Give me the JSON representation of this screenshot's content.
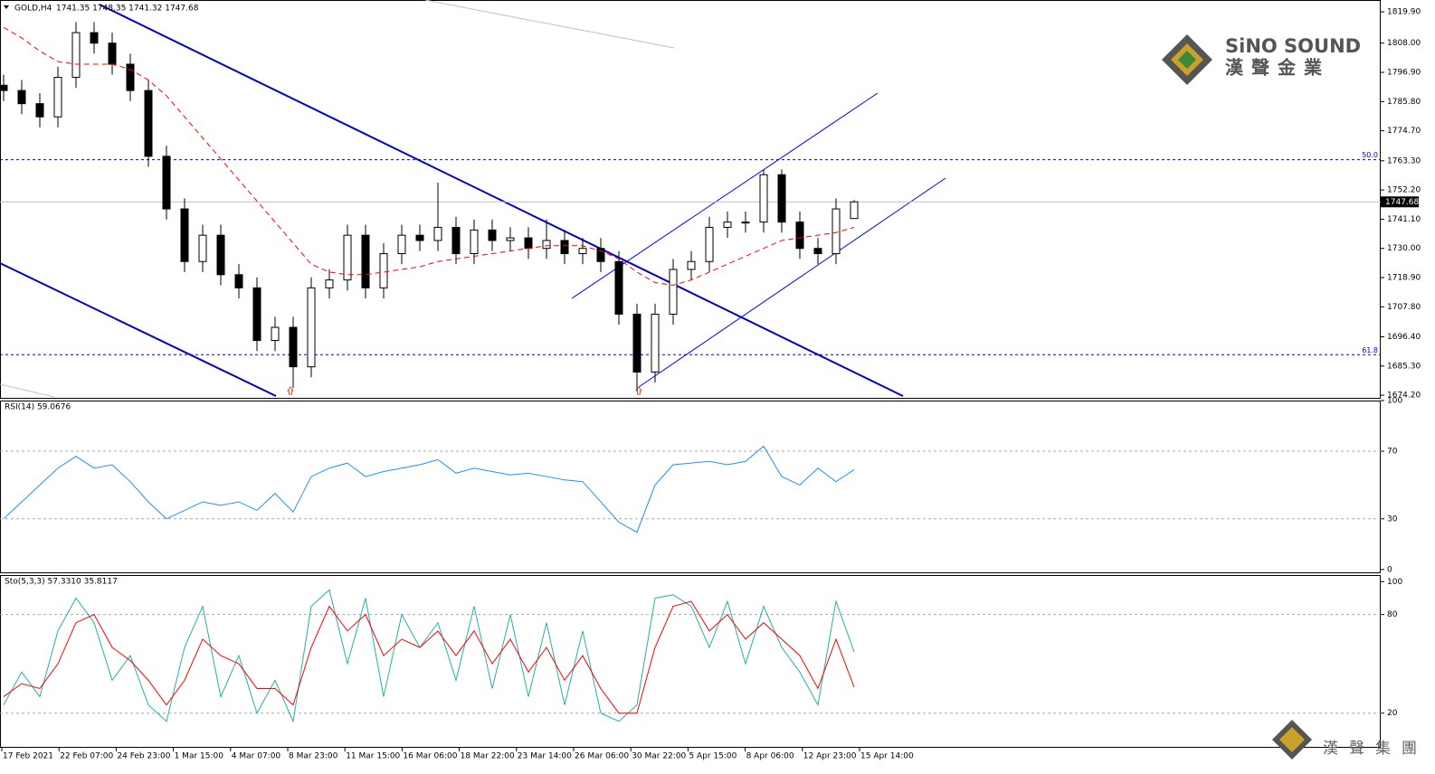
{
  "header": {
    "symbol": "GOLD,H4",
    "ohlc": "1741.35 1748.35 1741.32 1747.68"
  },
  "logo": {
    "name": "SiNO SOUND",
    "chinese": "漢聲金業",
    "group": "漢聲集團"
  },
  "time_axis": [
    "17 Feb 2021",
    "22 Feb 07:00",
    "24 Feb 23:00",
    "1 Mar 15:00",
    "4 Mar 07:00",
    "8 Mar 23:00",
    "11 Mar 15:00",
    "16 Mar 06:00",
    "18 Mar 22:00",
    "23 Mar 14:00",
    "26 Mar 06:00",
    "30 Mar 22:00",
    "5 Apr 15:00",
    "8 Apr 06:00",
    "12 Apr 23:00",
    "15 Apr 14:00"
  ],
  "chart_data": [
    {
      "type": "candlestick",
      "open": [
        1792,
        1790,
        1785,
        1780,
        1795,
        1812,
        1808,
        1800,
        1790,
        1765,
        1745,
        1725,
        1735,
        1720,
        1715,
        1695,
        1700,
        1685,
        1715,
        1718,
        1735,
        1715,
        1728,
        1735,
        1733,
        1738,
        1728,
        1737,
        1733,
        1734,
        1730,
        1733,
        1728,
        1730,
        1725,
        1705,
        1683,
        1705,
        1722,
        1725,
        1738,
        1740,
        1740,
        1758,
        1740,
        1730,
        1728,
        1741.35
      ],
      "high": [
        1796,
        1794,
        1789,
        1799,
        1816,
        1816,
        1812,
        1804,
        1794,
        1769,
        1749,
        1739,
        1739,
        1724,
        1719,
        1704,
        1704,
        1719,
        1722,
        1739,
        1739,
        1732,
        1739,
        1739,
        1755,
        1742,
        1741,
        1741,
        1738,
        1738,
        1741,
        1737,
        1734,
        1734,
        1729,
        1709,
        1709,
        1726,
        1729,
        1742,
        1744,
        1744,
        1760,
        1760,
        1744,
        1734,
        1749,
        1748.35
      ],
      "low": [
        1786,
        1781,
        1776,
        1776,
        1791,
        1804,
        1796,
        1786,
        1761,
        1741,
        1721,
        1721,
        1716,
        1711,
        1691,
        1691,
        1677,
        1681,
        1711,
        1714,
        1711,
        1711,
        1724,
        1729,
        1729,
        1724,
        1724,
        1729,
        1729,
        1726,
        1726,
        1724,
        1724,
        1721,
        1701,
        1676,
        1679,
        1701,
        1718,
        1721,
        1734,
        1736,
        1736,
        1736,
        1726,
        1724,
        1724,
        1741.32
      ],
      "close": [
        1790,
        1785,
        1780,
        1795,
        1812,
        1808,
        1800,
        1790,
        1765,
        1745,
        1725,
        1735,
        1720,
        1715,
        1695,
        1700,
        1685,
        1715,
        1718,
        1735,
        1715,
        1728,
        1735,
        1733,
        1738,
        1728,
        1737,
        1733,
        1734,
        1730,
        1733,
        1728,
        1730,
        1725,
        1705,
        1683,
        1705,
        1722,
        1725,
        1738,
        1740,
        1740,
        1758,
        1740,
        1730,
        1728,
        1745,
        1747.68
      ],
      "ma": [
        1814,
        1810,
        1805,
        1801,
        1800,
        1800,
        1800,
        1798,
        1794,
        1788,
        1780,
        1772,
        1764,
        1756,
        1748,
        1740,
        1732,
        1724,
        1721,
        1720,
        1720,
        1721,
        1722,
        1723,
        1725,
        1726,
        1727,
        1728,
        1729,
        1730,
        1731,
        1731,
        1731,
        1729,
        1726,
        1721,
        1717,
        1716,
        1718,
        1721,
        1724,
        1727,
        1730,
        1733,
        1734,
        1735,
        1736,
        1738
      ],
      "ma_color": "#ff0000",
      "last_price": 1747.68,
      "levels": [
        {
          "value": 1763.7,
          "label": "50.0"
        },
        {
          "value": 1689.6,
          "label": "61.8"
        }
      ],
      "ylim": [
        1673.2,
        1824.4
      ],
      "yticks": [
        {
          "value": 1819.9,
          "label": "1819.90"
        },
        {
          "value": 1808.0,
          "label": "1808.00"
        },
        {
          "value": 1796.9,
          "label": "1796.90"
        },
        {
          "value": 1785.8,
          "label": "1785.80"
        },
        {
          "value": 1774.7,
          "label": "1774.70"
        },
        {
          "value": 1763.3,
          "label": "1763.30"
        },
        {
          "value": 1752.2,
          "label": "1752.20"
        },
        {
          "value": 1741.1,
          "label": "1741.10"
        },
        {
          "value": 1730.0,
          "label": "1730.00"
        },
        {
          "value": 1718.9,
          "label": "1718.90"
        },
        {
          "value": 1707.8,
          "label": "1707.80"
        },
        {
          "value": 1696.4,
          "label": "1696.40"
        },
        {
          "value": 1685.3,
          "label": "1685.30"
        },
        {
          "value": 1674.2,
          "label": "1674.20"
        }
      ]
    },
    {
      "type": "line",
      "title": "RSI(14) 59.0676",
      "series": [
        {
          "color": "#1e90ff",
          "values": [
            30,
            40,
            50,
            60,
            67,
            60,
            62,
            52,
            40,
            30,
            35,
            40,
            38,
            40,
            35,
            45,
            34,
            55,
            60,
            63,
            55,
            58,
            60,
            62,
            65,
            57,
            60,
            58,
            56,
            57,
            55,
            53,
            52,
            40,
            28,
            22,
            50,
            62,
            63,
            64,
            62,
            64,
            73,
            55,
            50,
            60,
            52,
            59.0676
          ]
        }
      ],
      "ylim": [
        -1.7,
        100
      ],
      "yticks": [
        100,
        70,
        30,
        0
      ],
      "grid_ticks": [
        70,
        30
      ]
    },
    {
      "type": "line",
      "title": "Sto(5,3,3) 57.3310 35.8117",
      "series": [
        {
          "color": "#20b2aa",
          "values": [
            25,
            45,
            30,
            70,
            90,
            75,
            40,
            55,
            25,
            15,
            60,
            85,
            30,
            55,
            20,
            40,
            15,
            85,
            95,
            50,
            90,
            30,
            80,
            60,
            75,
            40,
            85,
            35,
            80,
            30,
            75,
            25,
            70,
            20,
            15,
            25,
            90,
            92,
            85,
            60,
            88,
            50,
            85,
            60,
            45,
            25,
            88,
            57.331
          ]
        },
        {
          "color": "#ff0000",
          "values": [
            30,
            38,
            35,
            50,
            75,
            80,
            60,
            52,
            40,
            25,
            40,
            65,
            55,
            50,
            35,
            35,
            25,
            60,
            85,
            70,
            80,
            55,
            65,
            60,
            70,
            55,
            70,
            50,
            65,
            45,
            60,
            40,
            55,
            35,
            20,
            20,
            60,
            85,
            88,
            70,
            80,
            65,
            75,
            65,
            55,
            35,
            65,
            35.8117
          ]
        }
      ],
      "ylim": [
        -0.5,
        104
      ],
      "yticks": [
        100,
        80,
        20
      ],
      "grid_ticks": [
        80,
        20
      ]
    }
  ]
}
